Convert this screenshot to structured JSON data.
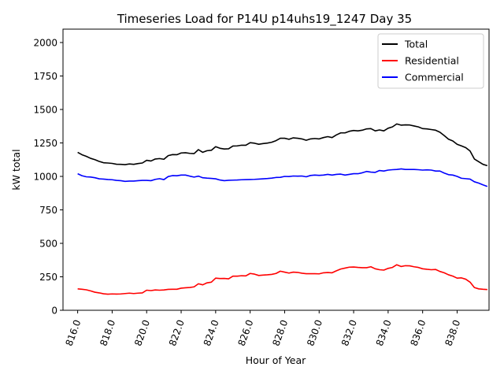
{
  "chart_data": {
    "type": "line",
    "title": "Timeseries Load for P14U p14uhs19_1247  Day 35",
    "xlabel": "Hour of Year",
    "ylabel": "kW total",
    "xlim": [
      815.15,
      839.85
    ],
    "ylim": [
      0,
      2100
    ],
    "xticks": [
      816,
      818,
      820,
      822,
      824,
      826,
      828,
      830,
      832,
      834,
      836,
      838
    ],
    "xtick_labels": [
      "816.0",
      "818.0",
      "820.0",
      "822.0",
      "824.0",
      "826.0",
      "828.0",
      "830.0",
      "832.0",
      "834.0",
      "836.0",
      "838.0"
    ],
    "yticks": [
      0,
      250,
      500,
      750,
      1000,
      1250,
      1500,
      1750,
      2000
    ],
    "ytick_labels": [
      "0",
      "250",
      "500",
      "750",
      "1000",
      "1250",
      "1500",
      "1750",
      "2000"
    ],
    "legend_position": "top-right",
    "grid": false,
    "x": [
      816.0,
      816.25,
      816.5,
      816.75,
      817.0,
      817.25,
      817.5,
      817.75,
      818.0,
      818.25,
      818.5,
      818.75,
      819.0,
      819.25,
      819.5,
      819.75,
      820.0,
      820.25,
      820.5,
      820.75,
      821.0,
      821.25,
      821.5,
      821.75,
      822.0,
      822.25,
      822.5,
      822.75,
      823.0,
      823.25,
      823.5,
      823.75,
      824.0,
      824.25,
      824.5,
      824.75,
      825.0,
      825.25,
      825.5,
      825.75,
      826.0,
      826.25,
      826.5,
      826.75,
      827.0,
      827.25,
      827.5,
      827.75,
      828.0,
      828.25,
      828.5,
      828.75,
      829.0,
      829.25,
      829.5,
      829.75,
      830.0,
      830.25,
      830.5,
      830.75,
      831.0,
      831.25,
      831.5,
      831.75,
      832.0,
      832.25,
      832.5,
      832.75,
      833.0,
      833.25,
      833.5,
      833.75,
      834.0,
      834.25,
      834.5,
      834.75,
      835.0,
      835.25,
      835.5,
      835.75,
      836.0,
      836.25,
      836.5,
      836.75,
      837.0,
      837.25,
      837.5,
      837.75,
      838.0,
      838.25,
      838.5,
      838.75,
      839.0,
      839.25,
      839.5,
      839.75
    ],
    "series": [
      {
        "name": "Total",
        "color": "#000000",
        "values": [
          1180,
          1162,
          1150,
          1135,
          1125,
          1112,
          1102,
          1100,
          1097,
          1091,
          1090,
          1088,
          1093,
          1090,
          1096,
          1100,
          1120,
          1115,
          1130,
          1133,
          1128,
          1155,
          1163,
          1162,
          1175,
          1177,
          1172,
          1170,
          1200,
          1180,
          1192,
          1195,
          1222,
          1210,
          1205,
          1206,
          1227,
          1228,
          1233,
          1233,
          1252,
          1248,
          1240,
          1245,
          1249,
          1255,
          1267,
          1285,
          1285,
          1277,
          1288,
          1285,
          1280,
          1270,
          1280,
          1283,
          1280,
          1290,
          1297,
          1290,
          1310,
          1325,
          1325,
          1337,
          1343,
          1340,
          1345,
          1355,
          1357,
          1340,
          1347,
          1340,
          1360,
          1370,
          1392,
          1383,
          1385,
          1384,
          1377,
          1370,
          1357,
          1355,
          1350,
          1345,
          1330,
          1305,
          1278,
          1265,
          1240,
          1228,
          1215,
          1190,
          1130,
          1110,
          1090,
          1080
        ]
      },
      {
        "name": "Residential",
        "color": "#ff0000",
        "values": [
          160,
          157,
          153,
          145,
          135,
          130,
          123,
          120,
          122,
          121,
          122,
          125,
          128,
          125,
          128,
          130,
          150,
          147,
          152,
          150,
          152,
          156,
          157,
          157,
          165,
          168,
          170,
          175,
          198,
          190,
          205,
          210,
          240,
          237,
          238,
          235,
          255,
          255,
          258,
          257,
          275,
          270,
          260,
          263,
          265,
          268,
          275,
          292,
          285,
          278,
          285,
          283,
          277,
          273,
          273,
          273,
          272,
          280,
          282,
          280,
          295,
          308,
          315,
          322,
          323,
          320,
          318,
          318,
          325,
          310,
          303,
          300,
          313,
          320,
          340,
          327,
          333,
          332,
          325,
          320,
          310,
          306,
          303,
          305,
          290,
          280,
          265,
          255,
          240,
          242,
          232,
          210,
          170,
          160,
          157,
          155
        ]
      },
      {
        "name": "Commercial",
        "color": "#0000ff",
        "values": [
          1020,
          1005,
          997,
          995,
          990,
          982,
          980,
          977,
          975,
          970,
          968,
          963,
          965,
          965,
          968,
          970,
          970,
          968,
          978,
          983,
          976,
          999,
          1006,
          1005,
          1010,
          1010,
          1002,
          995,
          1002,
          990,
          987,
          985,
          982,
          973,
          968,
          971,
          972,
          973,
          975,
          976,
          977,
          978,
          980,
          982,
          984,
          987,
          992,
          993,
          1000,
          999,
          1003,
          1002,
          1003,
          997,
          1007,
          1010,
          1008,
          1010,
          1015,
          1010,
          1015,
          1017,
          1010,
          1015,
          1020,
          1020,
          1027,
          1037,
          1032,
          1030,
          1044,
          1040,
          1047,
          1050,
          1052,
          1056,
          1052,
          1052,
          1052,
          1050,
          1047,
          1049,
          1047,
          1040,
          1040,
          1025,
          1013,
          1010,
          1000,
          986,
          983,
          980,
          960,
          950,
          937,
          925
        ]
      }
    ]
  }
}
